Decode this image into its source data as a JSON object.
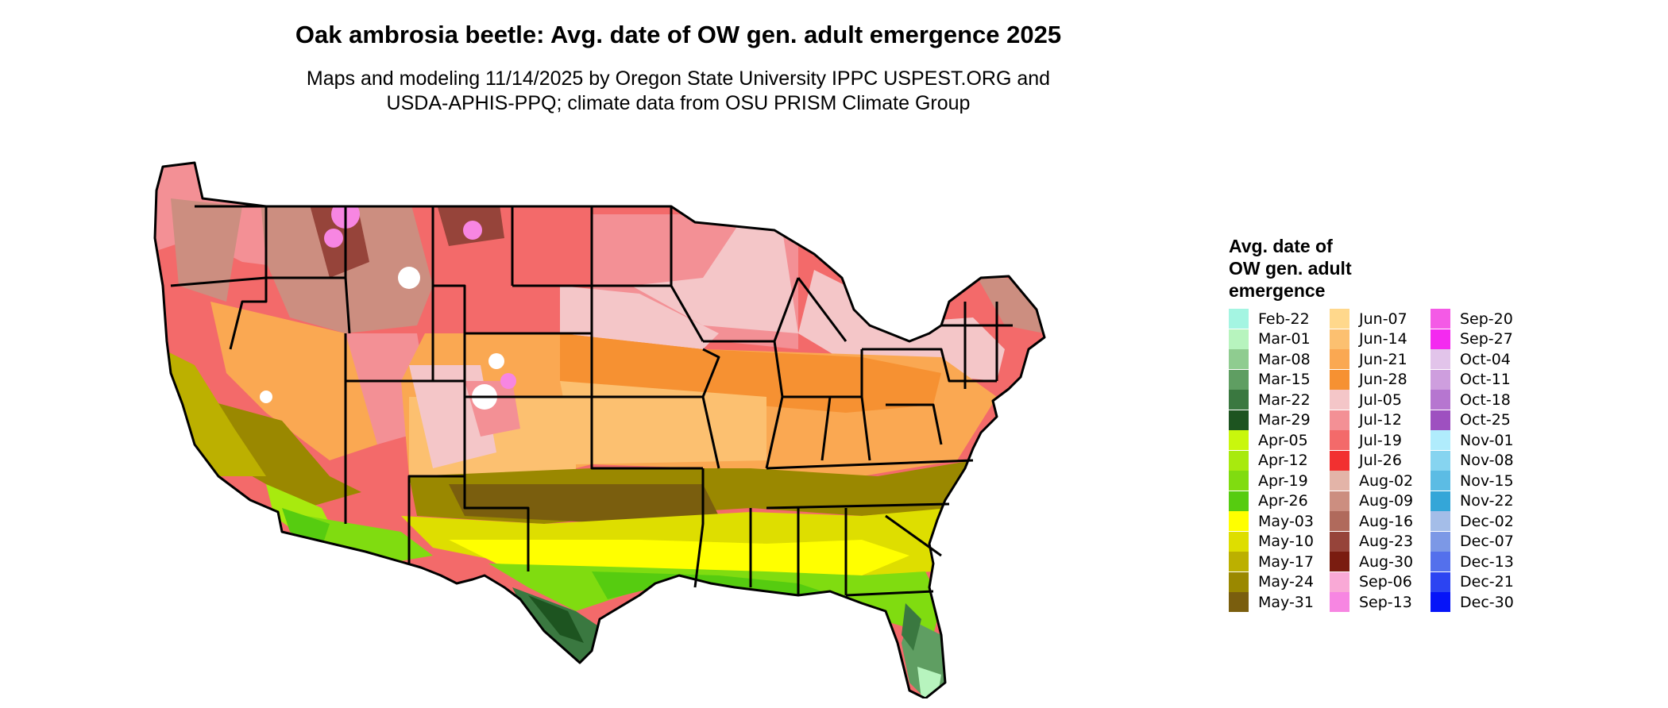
{
  "title": "Oak ambrosia beetle: Avg. date of OW gen. adult emergence 2025",
  "subtitle_line1": "Maps and modeling 11/14/2025 by Oregon State University IPPC USPEST.ORG and",
  "subtitle_line2": "USDA-APHIS-PPQ; climate data from OSU PRISM Climate Group",
  "legend": {
    "title": "Avg. date of\nOW gen. adult\nemergence",
    "items": [
      {
        "label": "Feb-22",
        "color": "#a4f5e2"
      },
      {
        "label": "Mar-01",
        "color": "#b7f4be"
      },
      {
        "label": "Mar-08",
        "color": "#8fcc90"
      },
      {
        "label": "Mar-15",
        "color": "#5f9e62"
      },
      {
        "label": "Mar-22",
        "color": "#3a7840"
      },
      {
        "label": "Mar-29",
        "color": "#1d5420"
      },
      {
        "label": "Apr-05",
        "color": "#c9f70d"
      },
      {
        "label": "Apr-12",
        "color": "#a8ea0e"
      },
      {
        "label": "Apr-19",
        "color": "#80dc10"
      },
      {
        "label": "Apr-26",
        "color": "#56cc10"
      },
      {
        "label": "May-03",
        "color": "#ffff00"
      },
      {
        "label": "May-10",
        "color": "#dede00"
      },
      {
        "label": "May-17",
        "color": "#bcb000"
      },
      {
        "label": "May-24",
        "color": "#9a8800"
      },
      {
        "label": "May-31",
        "color": "#7a5e0e"
      },
      {
        "label": "Jun-07",
        "color": "#ffd88c"
      },
      {
        "label": "Jun-14",
        "color": "#fcc070"
      },
      {
        "label": "Jun-21",
        "color": "#faa852"
      },
      {
        "label": "Jun-28",
        "color": "#f69132"
      },
      {
        "label": "Jul-05",
        "color": "#f4c6c8"
      },
      {
        "label": "Jul-12",
        "color": "#f39095"
      },
      {
        "label": "Jul-19",
        "color": "#f36a6a"
      },
      {
        "label": "Jul-26",
        "color": "#f23030"
      },
      {
        "label": "Aug-02",
        "color": "#e3b4a8"
      },
      {
        "label": "Aug-09",
        "color": "#cc8e80"
      },
      {
        "label": "Aug-16",
        "color": "#b06a5c"
      },
      {
        "label": "Aug-23",
        "color": "#96443a"
      },
      {
        "label": "Aug-30",
        "color": "#7a1c10"
      },
      {
        "label": "Sep-06",
        "color": "#f9a9d6"
      },
      {
        "label": "Sep-13",
        "color": "#f786e2"
      },
      {
        "label": "Sep-20",
        "color": "#f45ae6"
      },
      {
        "label": "Sep-27",
        "color": "#f42af0"
      },
      {
        "label": "Oct-04",
        "color": "#e2c4ea"
      },
      {
        "label": "Oct-11",
        "color": "#ce9ede"
      },
      {
        "label": "Oct-18",
        "color": "#b676d0"
      },
      {
        "label": "Oct-25",
        "color": "#9e50c0"
      },
      {
        "label": "Nov-01",
        "color": "#b0ecfc"
      },
      {
        "label": "Nov-08",
        "color": "#86d4f0"
      },
      {
        "label": "Nov-15",
        "color": "#5cbce4"
      },
      {
        "label": "Nov-22",
        "color": "#34a6d8"
      },
      {
        "label": "Dec-02",
        "color": "#a4bde8"
      },
      {
        "label": "Dec-07",
        "color": "#7c98e6"
      },
      {
        "label": "Dec-13",
        "color": "#5470ec"
      },
      {
        "label": "Dec-21",
        "color": "#2c44f2"
      },
      {
        "label": "Dec-30",
        "color": "#0614f8"
      }
    ]
  }
}
